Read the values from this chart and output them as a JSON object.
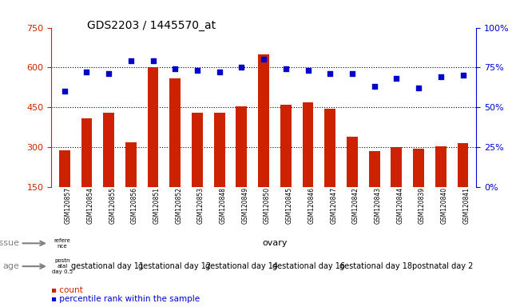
{
  "title": "GDS2203 / 1445570_at",
  "samples": [
    "GSM120857",
    "GSM120854",
    "GSM120855",
    "GSM120856",
    "GSM120851",
    "GSM120852",
    "GSM120853",
    "GSM120848",
    "GSM120849",
    "GSM120850",
    "GSM120845",
    "GSM120846",
    "GSM120847",
    "GSM120842",
    "GSM120843",
    "GSM120844",
    "GSM120839",
    "GSM120840",
    "GSM120841"
  ],
  "counts": [
    290,
    410,
    430,
    320,
    600,
    560,
    430,
    430,
    455,
    650,
    460,
    470,
    445,
    340,
    285,
    300,
    295,
    305,
    315
  ],
  "percentiles": [
    60,
    72,
    71,
    79,
    79,
    74,
    73,
    72,
    75,
    80,
    74,
    73,
    71,
    71,
    63,
    68,
    62,
    69,
    70
  ],
  "ylim_left": [
    150,
    750
  ],
  "ylim_right": [
    0,
    100
  ],
  "yticks_left": [
    150,
    300,
    450,
    600,
    750
  ],
  "yticks_right": [
    0,
    25,
    50,
    75,
    100
  ],
  "grid_values": [
    300,
    450,
    600
  ],
  "bar_color": "#CC2200",
  "dot_color": "#0000CC",
  "title_color": "#000000",
  "left_axis_color": "#CC2200",
  "right_axis_color": "#0000CC",
  "background_color": "#FFFFFF",
  "legend_count_color": "#CC2200",
  "legend_pct_color": "#0000CC",
  "tissue_cells": [
    {
      "label": "refere\nnce",
      "color": "#90EE90",
      "span": [
        0,
        1
      ]
    },
    {
      "label": "ovary",
      "color": "#90EE90",
      "span": [
        1,
        19
      ]
    }
  ],
  "age_cells": [
    {
      "label": "postn\natal\nday 0.5",
      "color": "#FF80FF",
      "span": [
        0,
        1
      ]
    },
    {
      "label": "gestational day 11",
      "color": "#FFE4E1",
      "span": [
        1,
        4
      ]
    },
    {
      "label": "gestational day 12",
      "color": "#FFB6C1",
      "span": [
        4,
        7
      ]
    },
    {
      "label": "gestational day 14",
      "color": "#FFE4E1",
      "span": [
        7,
        10
      ]
    },
    {
      "label": "gestational day 16",
      "color": "#FFB6C1",
      "span": [
        10,
        13
      ]
    },
    {
      "label": "gestational day 18",
      "color": "#FFE4E1",
      "span": [
        13,
        16
      ]
    },
    {
      "label": "postnatal day 2",
      "color": "#FF80FF",
      "span": [
        16,
        19
      ]
    }
  ]
}
